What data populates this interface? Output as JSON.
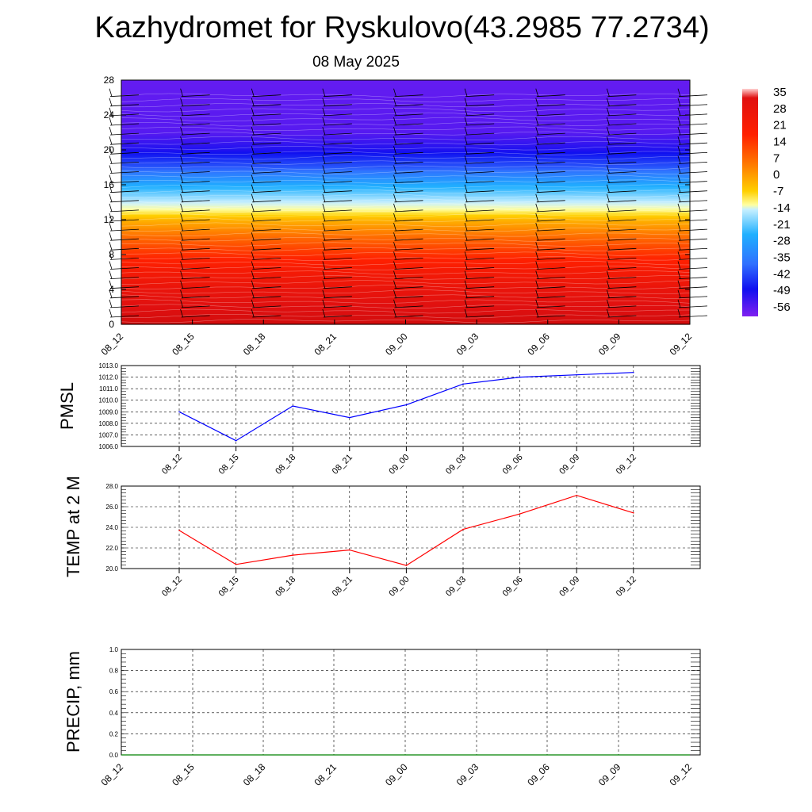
{
  "header": {
    "title": "Kazhydromet for Ryskulovo(43.2985 77.2734)",
    "date": "08 May 2025"
  },
  "chart_data": [
    {
      "type": "heatmap",
      "name": "vertical-temperature-section",
      "x_ticks": [
        "08_12",
        "08_15",
        "08_18",
        "08_21",
        "09_00",
        "09_03",
        "09_06",
        "09_09",
        "09_12"
      ],
      "y_ticks": [
        0,
        4,
        8,
        12,
        16,
        20,
        24,
        28
      ],
      "ylim": [
        0,
        28
      ],
      "colorbar": {
        "labels": [
          "35",
          "28",
          "21",
          "14",
          "7",
          "0",
          "-7",
          "-14",
          "-21",
          "-28",
          "-35",
          "-42",
          "-49",
          "-56"
        ],
        "min": -60,
        "max": 38
      },
      "temperature_profile": [
        {
          "level": 0,
          "temp": 35
        },
        {
          "level": 2,
          "temp": 30
        },
        {
          "level": 4,
          "temp": 26
        },
        {
          "level": 6,
          "temp": 21
        },
        {
          "level": 8,
          "temp": 14
        },
        {
          "level": 10,
          "temp": 6
        },
        {
          "level": 12,
          "temp": -4
        },
        {
          "level": 13,
          "temp": -12
        },
        {
          "level": 14,
          "temp": -22
        },
        {
          "level": 16,
          "temp": -33
        },
        {
          "level": 18,
          "temp": -46
        },
        {
          "level": 20,
          "temp": -53
        },
        {
          "level": 22,
          "temp": -57
        },
        {
          "level": 28,
          "temp": -58
        }
      ],
      "wind_barbs": "true"
    },
    {
      "type": "line",
      "name": "pmsl",
      "ylabel": "PMSL",
      "x": [
        "08_12",
        "08_15",
        "08_18",
        "08_21",
        "09_00",
        "09_03",
        "09_06",
        "09_09",
        "09_12"
      ],
      "series": [
        {
          "values": [
            1009.0,
            1006.5,
            1009.5,
            1008.5,
            1009.6,
            1011.4,
            1012.0,
            1012.2,
            1012.4
          ],
          "color": "#0000ff"
        }
      ],
      "ylim": [
        1006.0,
        1013.0
      ],
      "y_ticks": [
        "1006.0",
        "1007.0",
        "1008.0",
        "1009.0",
        "1010.0",
        "1011.0",
        "1012.0",
        "1013.0"
      ],
      "grid": "dashed"
    },
    {
      "type": "line",
      "name": "temp-2m",
      "ylabel": "TEMP at 2 M",
      "x": [
        "08_12",
        "08_15",
        "08_18",
        "08_21",
        "09_00",
        "09_03",
        "09_06",
        "09_09",
        "09_12"
      ],
      "series": [
        {
          "values": [
            23.7,
            20.4,
            21.3,
            21.8,
            20.3,
            23.8,
            25.3,
            27.1,
            25.4
          ],
          "color": "#ff0000"
        }
      ],
      "ylim": [
        20.0,
        28.0
      ],
      "y_ticks": [
        "20.0",
        "22.0",
        "24.0",
        "26.0",
        "28.0"
      ],
      "grid": "dashed"
    },
    {
      "type": "line",
      "name": "precip",
      "ylabel": "PRECIP, mm",
      "x": [
        "08_12",
        "08_15",
        "08_18",
        "08_21",
        "09_00",
        "09_03",
        "09_06",
        "09_09",
        "09_12"
      ],
      "series": [
        {
          "values": [
            0,
            0,
            0,
            0,
            0,
            0,
            0,
            0,
            0
          ],
          "color": "#008000"
        }
      ],
      "ylim": [
        0.0,
        1.0
      ],
      "y_ticks": [
        "0.0",
        "0.2",
        "0.4",
        "0.6",
        "0.8",
        "1.0"
      ],
      "grid": "dashed"
    }
  ]
}
